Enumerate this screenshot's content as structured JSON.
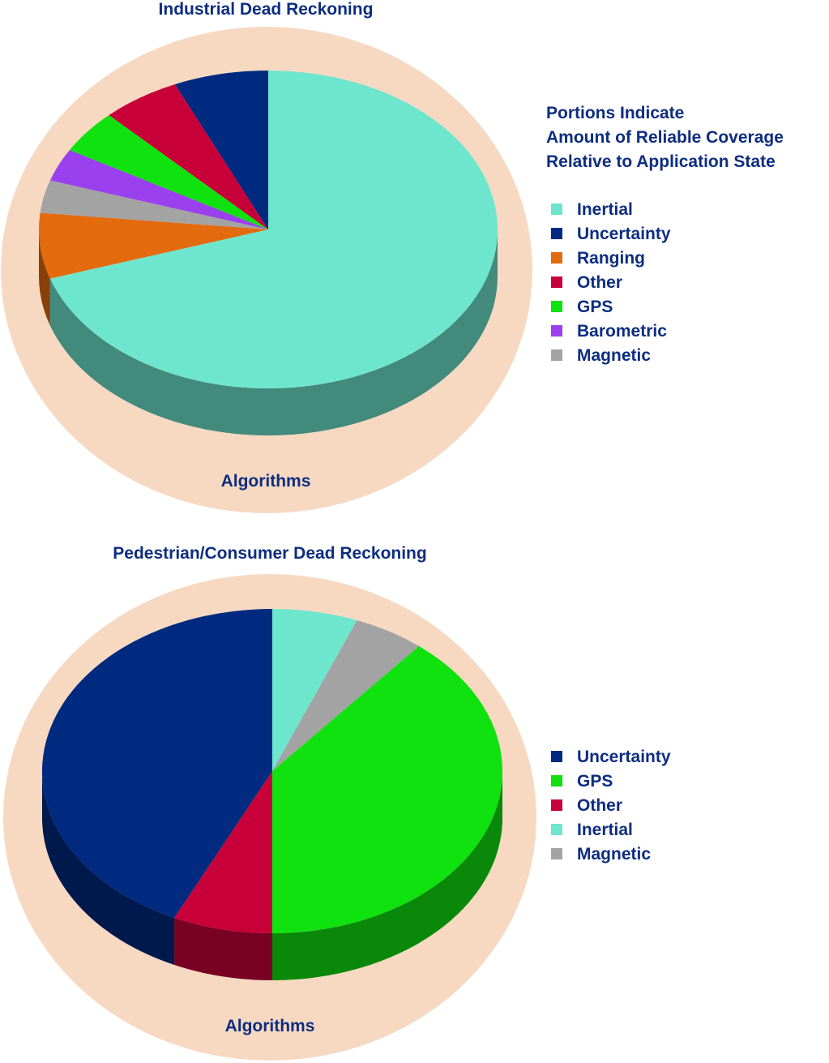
{
  "chart_data": [
    {
      "type": "pie",
      "title": "Industrial Dead Reckoning",
      "footer": "Algorithms",
      "note": [
        "Portions Indicate",
        "Amount of Reliable Coverage",
        "Relative to Application State"
      ],
      "unit": "percent",
      "slices": [
        {
          "label": "Inertial",
          "value": 63,
          "color": "#6ee6ce"
        },
        {
          "label": "Uncertainty",
          "value": 6,
          "color": "#002a80"
        },
        {
          "label": "Ranging",
          "value": 6,
          "color": "#e46a0e"
        },
        {
          "label": "Other",
          "value": 5,
          "color": "#c8003a"
        },
        {
          "label": "GPS",
          "value": 4,
          "color": "#0fe20f"
        },
        {
          "label": "Barometric",
          "value": 3,
          "color": "#9a40ee"
        },
        {
          "label": "Magnetic",
          "value": 3,
          "color": "#a3a3a3"
        }
      ],
      "drawing_order": [
        "Inertial",
        "Ranging",
        "Magnetic",
        "Barometric",
        "GPS",
        "Other",
        "Uncertainty"
      ],
      "legend_position": "right",
      "style": "3d-pie-on-disc",
      "disc_color": "#f7d9c2"
    },
    {
      "type": "pie",
      "title": "Pedestrian/Consumer Dead Reckoning",
      "footer": "Algorithms",
      "unit": "percent",
      "slices": [
        {
          "label": "Uncertainty",
          "value": 43,
          "color": "#002a80"
        },
        {
          "label": "GPS",
          "value": 39,
          "color": "#0fe20f"
        },
        {
          "label": "Other",
          "value": 7,
          "color": "#c8003a"
        },
        {
          "label": "Inertial",
          "value": 6,
          "color": "#6ee6ce"
        },
        {
          "label": "Magnetic",
          "value": 5,
          "color": "#a3a3a3"
        }
      ],
      "drawing_order": [
        "Inertial",
        "Magnetic",
        "GPS",
        "Other",
        "Uncertainty"
      ],
      "legend_position": "right",
      "style": "3d-pie-on-disc",
      "disc_color": "#f7d9c2"
    }
  ]
}
